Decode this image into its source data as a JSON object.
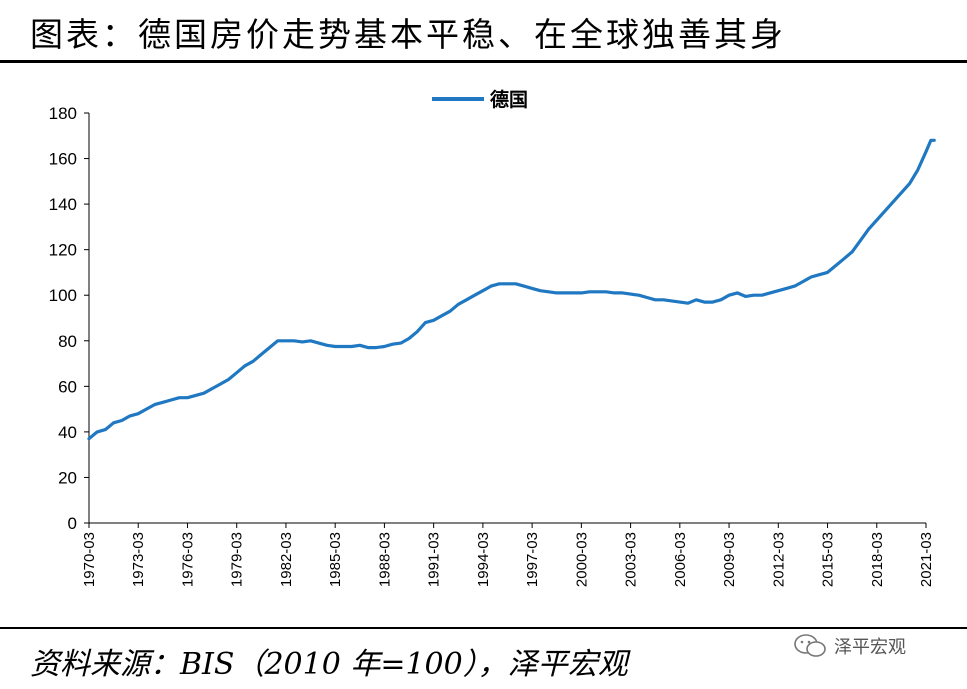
{
  "header": {
    "title": "图表：德国房价走势基本平稳、在全球独善其身"
  },
  "footer": {
    "source": "资料来源：BIS（2010 年=100），泽平宏观",
    "watermark": "泽平宏观"
  },
  "chart_data": {
    "type": "line",
    "ylim": [
      0,
      180
    ],
    "yticks": [
      0,
      20,
      40,
      60,
      80,
      100,
      120,
      140,
      160,
      180
    ],
    "xlim": [
      1970.0,
      2021.0
    ],
    "xticks": [
      "1970-03",
      "1973-03",
      "1976-03",
      "1979-03",
      "1982-03",
      "1985-03",
      "1988-03",
      "1991-03",
      "1994-03",
      "1997-03",
      "2000-03",
      "2003-03",
      "2006-03",
      "2009-03",
      "2012-03",
      "2015-03",
      "2018-03",
      "2021-03"
    ],
    "legend": "top-center",
    "colors": {
      "series": "#1F78C1"
    },
    "series": [
      {
        "name": "德国",
        "points": [
          [
            1970.0,
            37
          ],
          [
            1970.5,
            40
          ],
          [
            1971.0,
            41
          ],
          [
            1971.5,
            44
          ],
          [
            1972.0,
            45
          ],
          [
            1972.5,
            47
          ],
          [
            1973.0,
            48
          ],
          [
            1973.5,
            50
          ],
          [
            1974.0,
            52
          ],
          [
            1974.5,
            53
          ],
          [
            1975.0,
            54
          ],
          [
            1975.5,
            55
          ],
          [
            1976.0,
            55
          ],
          [
            1976.5,
            56
          ],
          [
            1977.0,
            57
          ],
          [
            1977.5,
            59
          ],
          [
            1978.0,
            61
          ],
          [
            1978.5,
            63
          ],
          [
            1979.0,
            66
          ],
          [
            1979.5,
            69
          ],
          [
            1980.0,
            71
          ],
          [
            1980.5,
            74
          ],
          [
            1981.0,
            77
          ],
          [
            1981.5,
            80
          ],
          [
            1982.0,
            80
          ],
          [
            1982.5,
            80
          ],
          [
            1983.0,
            79.5
          ],
          [
            1983.5,
            80
          ],
          [
            1984.0,
            79
          ],
          [
            1984.5,
            78
          ],
          [
            1985.0,
            77.5
          ],
          [
            1985.5,
            77.5
          ],
          [
            1986.0,
            77.5
          ],
          [
            1986.5,
            78
          ],
          [
            1987.0,
            77
          ],
          [
            1987.5,
            77
          ],
          [
            1988.0,
            77.5
          ],
          [
            1988.5,
            78.5
          ],
          [
            1989.0,
            79
          ],
          [
            1989.5,
            81
          ],
          [
            1990.0,
            84
          ],
          [
            1990.5,
            88
          ],
          [
            1991.0,
            89
          ],
          [
            1991.5,
            91
          ],
          [
            1992.0,
            93
          ],
          [
            1992.5,
            96
          ],
          [
            1993.0,
            98
          ],
          [
            1993.5,
            100
          ],
          [
            1994.0,
            102
          ],
          [
            1994.5,
            104
          ],
          [
            1995.0,
            105
          ],
          [
            1995.5,
            105
          ],
          [
            1996.0,
            105
          ],
          [
            1996.5,
            104
          ],
          [
            1997.0,
            103
          ],
          [
            1997.5,
            102
          ],
          [
            1998.0,
            101.5
          ],
          [
            1998.5,
            101
          ],
          [
            1999.0,
            101
          ],
          [
            1999.5,
            101
          ],
          [
            2000.0,
            101
          ],
          [
            2000.5,
            101.5
          ],
          [
            2001.0,
            101.5
          ],
          [
            2001.5,
            101.5
          ],
          [
            2002.0,
            101
          ],
          [
            2002.5,
            101
          ],
          [
            2003.0,
            100.5
          ],
          [
            2003.5,
            100
          ],
          [
            2004.0,
            99
          ],
          [
            2004.5,
            98
          ],
          [
            2005.0,
            98
          ],
          [
            2005.5,
            97.5
          ],
          [
            2006.0,
            97
          ],
          [
            2006.5,
            96.5
          ],
          [
            2007.0,
            98
          ],
          [
            2007.5,
            97
          ],
          [
            2008.0,
            97
          ],
          [
            2008.5,
            98
          ],
          [
            2009.0,
            100
          ],
          [
            2009.5,
            101
          ],
          [
            2010.0,
            99.5
          ],
          [
            2010.5,
            100
          ],
          [
            2011.0,
            100
          ],
          [
            2011.5,
            101
          ],
          [
            2012.0,
            102
          ],
          [
            2012.5,
            103
          ],
          [
            2013.0,
            104
          ],
          [
            2013.5,
            106
          ],
          [
            2014.0,
            108
          ],
          [
            2014.5,
            109
          ],
          [
            2015.0,
            110
          ],
          [
            2015.5,
            113
          ],
          [
            2016.0,
            116
          ],
          [
            2016.5,
            119
          ],
          [
            2017.0,
            124
          ],
          [
            2017.5,
            129
          ],
          [
            2018.0,
            133
          ],
          [
            2018.5,
            137
          ],
          [
            2019.0,
            141
          ],
          [
            2019.5,
            145
          ],
          [
            2020.0,
            149
          ],
          [
            2020.5,
            155
          ],
          [
            2021.0,
            163
          ],
          [
            2021.3,
            168
          ],
          [
            2021.5,
            168
          ]
        ]
      }
    ]
  }
}
